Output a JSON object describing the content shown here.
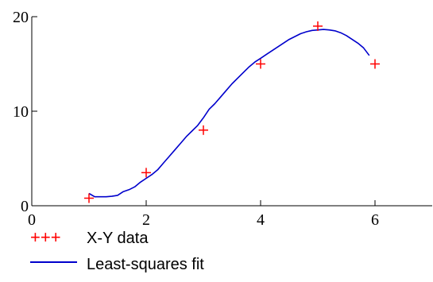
{
  "chart_data": {
    "type": "line",
    "xlim": [
      0,
      7
    ],
    "ylim": [
      0,
      20
    ],
    "xticks": [
      0,
      2,
      4,
      6
    ],
    "yticks": [
      0,
      10,
      20
    ],
    "grid": false,
    "legend_position": "bottom-left",
    "colors": {
      "data_marker": "#ff0000",
      "fit_line": "#0000cc",
      "axes": "#000000"
    },
    "series": [
      {
        "name": "X-Y data",
        "style": "markers",
        "marker": "+",
        "x": [
          1,
          2,
          3,
          4,
          5,
          6
        ],
        "y": [
          0.8,
          3.5,
          8,
          15,
          19,
          15
        ]
      },
      {
        "name": "Least-squares fit",
        "style": "line",
        "x": [
          1.0,
          1.1,
          1.2,
          1.3,
          1.4,
          1.5,
          1.6,
          1.7,
          1.8,
          1.9,
          2.0,
          2.1,
          2.2,
          2.3,
          2.4,
          2.5,
          2.6,
          2.7,
          2.8,
          2.9,
          3.0,
          3.1,
          3.2,
          3.3,
          3.4,
          3.5,
          3.6,
          3.7,
          3.8,
          3.9,
          4.0,
          4.1,
          4.2,
          4.3,
          4.4,
          4.5,
          4.6,
          4.7,
          4.8,
          4.9,
          5.0,
          5.1,
          5.2,
          5.3,
          5.4,
          5.5,
          5.6,
          5.7,
          5.8,
          5.9
        ],
        "y": [
          1.3,
          0.95,
          0.95,
          0.95,
          1.0,
          1.1,
          1.5,
          1.7,
          2.0,
          2.5,
          2.9,
          3.3,
          3.8,
          4.5,
          5.2,
          5.9,
          6.6,
          7.3,
          7.9,
          8.5,
          9.3,
          10.2,
          10.8,
          11.5,
          12.2,
          12.9,
          13.5,
          14.1,
          14.7,
          15.2,
          15.6,
          16.0,
          16.4,
          16.8,
          17.2,
          17.6,
          17.9,
          18.2,
          18.4,
          18.55,
          18.6,
          18.65,
          18.6,
          18.5,
          18.3,
          18.0,
          17.6,
          17.2,
          16.7,
          15.9
        ]
      }
    ],
    "legend": [
      {
        "marks": "+++",
        "label": "X-Y data"
      },
      {
        "marks": "line",
        "label": "Least-squares fit"
      }
    ]
  }
}
